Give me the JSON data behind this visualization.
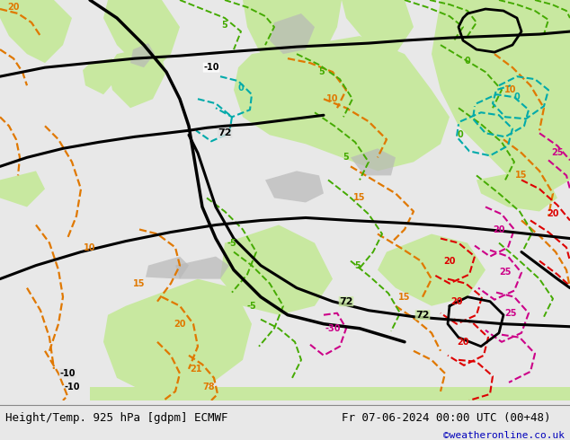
{
  "title_left": "Height/Temp. 925 hPa [gdpm] ECMWF",
  "title_right": "Fr 07-06-2024 00:00 UTC (00+48)",
  "credit": "©weatheronline.co.uk",
  "bg_color": "#e8e8e8",
  "ocean_color": "#e0e0e0",
  "land_color": "#c8e8a0",
  "terrain_color": "#b8b8b8",
  "fig_width": 6.34,
  "fig_height": 4.9,
  "title_font_size": 9.0,
  "credit_font_size": 8.0,
  "credit_color": "#0000bb"
}
